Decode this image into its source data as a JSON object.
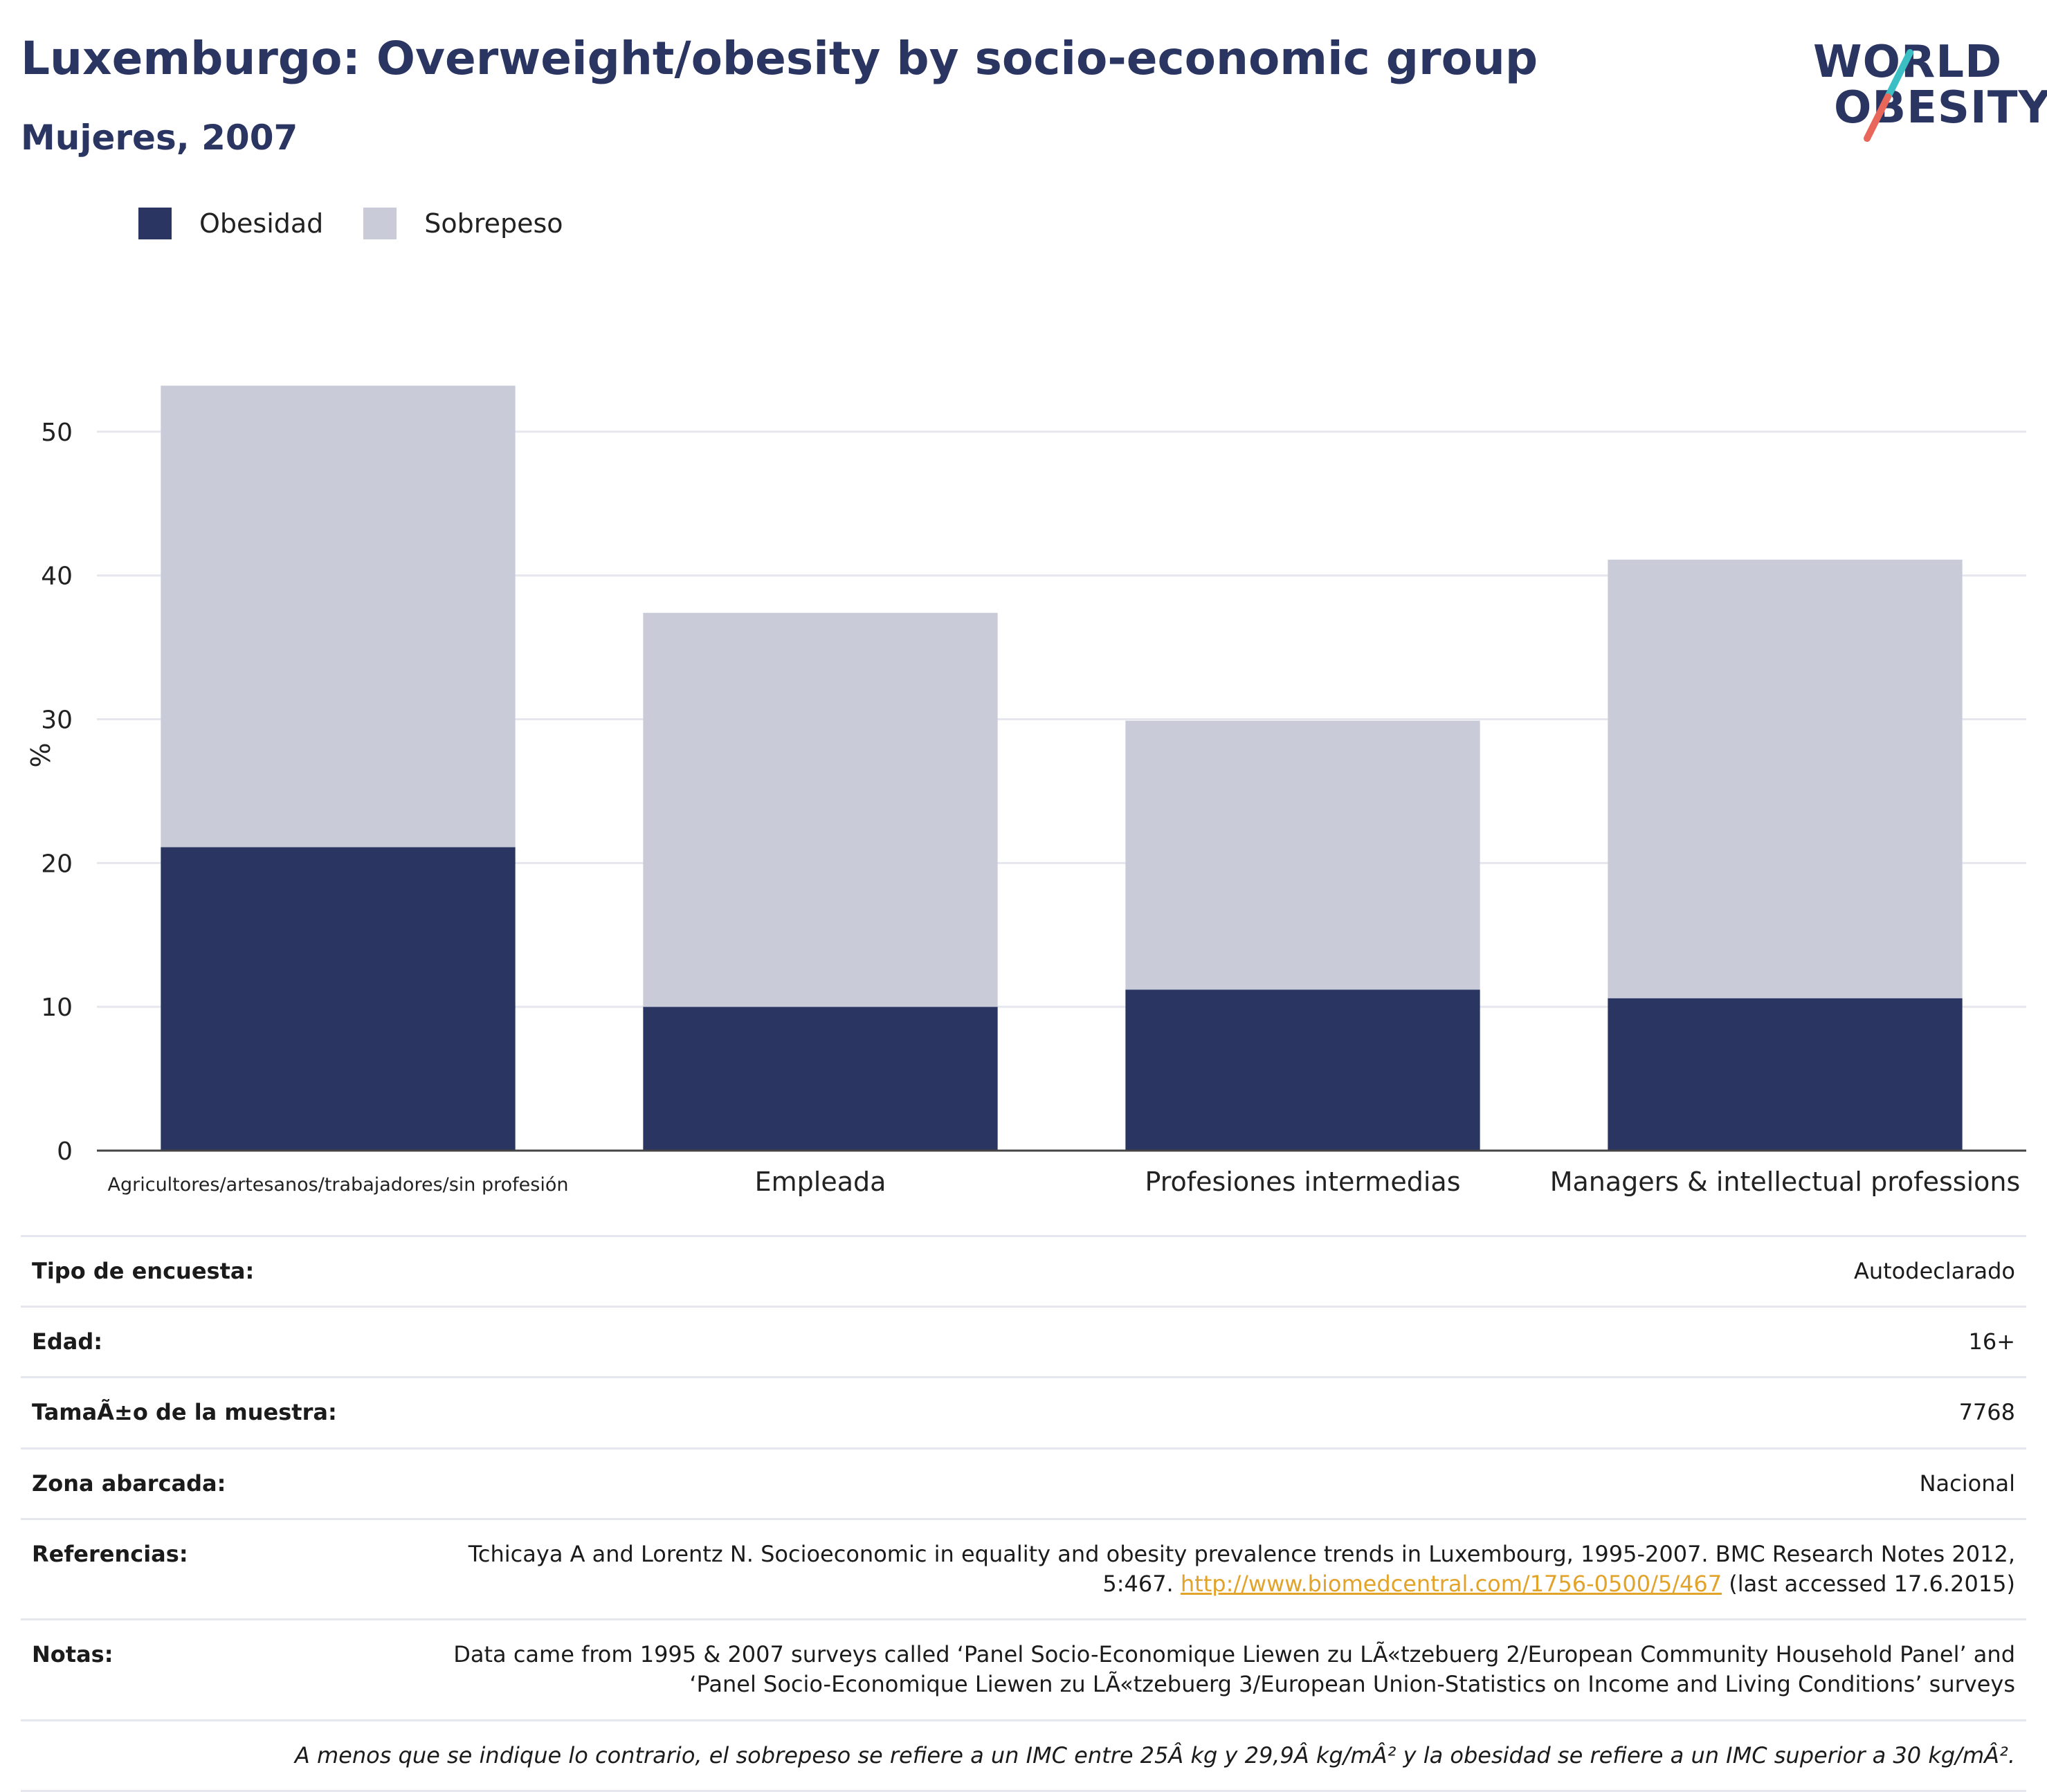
{
  "header": {
    "title": "Luxemburgo: Overweight/obesity by socio-economic group",
    "subtitle": "Mujeres, 2007"
  },
  "logo": {
    "line1": "WORLD",
    "line2": "OBESITY",
    "slash_colors": [
      "#3cbfc4",
      "#e8665a"
    ]
  },
  "colors": {
    "obesidad": "#2a3561",
    "sobrepeso": "#c9ccd8",
    "grid": "#e6e7ee",
    "axis": "#444444",
    "link": "#e2a32a"
  },
  "chart_data": {
    "type": "bar",
    "stacked": true,
    "categories": [
      "Agricultores/artesanos/trabajadores/sin profesión",
      "Empleada",
      "Profesiones intermedias",
      "Managers & intellectual professions"
    ],
    "series": [
      {
        "name": "Obesidad",
        "values": [
          21.1,
          10.0,
          11.2,
          10.6
        ]
      },
      {
        "name": "Sobrepeso",
        "values": [
          32.1,
          27.4,
          18.7,
          30.5
        ]
      }
    ],
    "ylabel": "%",
    "ylim": [
      0,
      55
    ],
    "yticks": [
      0,
      10,
      20,
      30,
      40,
      50
    ],
    "grid": true,
    "legend": "top-left"
  },
  "info": {
    "rows": [
      {
        "label": "Tipo de encuesta:",
        "value": "Autodeclarado"
      },
      {
        "label": "Edad:",
        "value": "16+"
      },
      {
        "label": "TamaÃ±o de la muestra:",
        "value": "7768"
      },
      {
        "label": "Zona abarcada:",
        "value": "Nacional"
      }
    ],
    "references": {
      "label": "Referencias:",
      "text_before": "Tchicaya A and Lorentz N. Socioeconomic in equality and obesity prevalence trends in Luxembourg, 1995-2007. BMC Research Notes 2012, 5:467. ",
      "link": "http://www.biomedcentral.com/1756-0500/5/467",
      "text_after": " (last accessed 17.6.2015)"
    },
    "notes": {
      "label": "Notas:",
      "value": "Data came from 1995 & 2007 surveys called ‘Panel Socio-Economique Liewen zu LÃ«tzebuerg 2/European Community Household Panel’ and ‘Panel Socio-Economique Liewen zu LÃ«tzebuerg 3/European Union-Statistics on Income and Living Conditions’ surveys"
    },
    "footnote": "A menos que se indique lo contrario, el sobrepeso se refiere a un IMC entre 25Â kg y 29,9Â kg/mÂ² y la obesidad se refiere a un IMC superior a 30 kg/mÂ²."
  }
}
